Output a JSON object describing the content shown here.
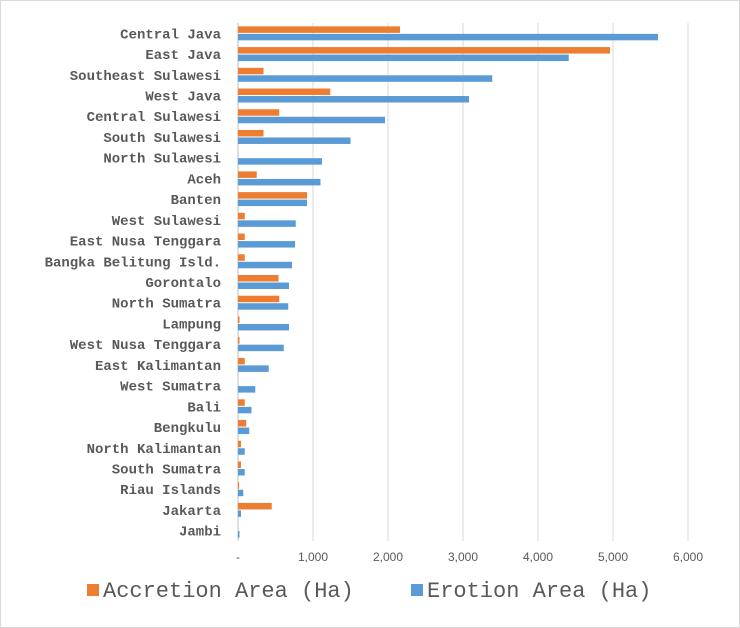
{
  "chart_data": {
    "type": "bar",
    "orientation": "horizontal",
    "categories": [
      "Central Java",
      "East Java",
      "Southeast Sulawesi",
      "West Java",
      "Central Sulawesi",
      "South Sulawesi",
      "North Sulawesi",
      "Aceh",
      "Banten",
      "West Sulawesi",
      "East Nusa Tenggara",
      "Bangka Belitung Isld.",
      "Gorontalo",
      "North Sumatra",
      "Lampung",
      "West Nusa Tenggara",
      "East Kalimantan",
      "West Sumatra",
      "Bali",
      "Bengkulu",
      "North Kalimantan",
      "South Sumatra",
      "Riau Islands",
      "Jakarta",
      "Jambi"
    ],
    "series": [
      {
        "name": "Accretion Area (Ha)",
        "color": "#ed7d31",
        "values": [
          2160,
          4960,
          340,
          1230,
          550,
          340,
          0,
          250,
          920,
          90,
          90,
          90,
          540,
          550,
          20,
          20,
          90,
          0,
          90,
          110,
          40,
          40,
          15,
          450,
          0
        ]
      },
      {
        "name": "Erotion Area (Ha)",
        "color": "#5b9bd5",
        "values": [
          5600,
          4410,
          3390,
          3080,
          1960,
          1500,
          1120,
          1100,
          920,
          770,
          760,
          720,
          680,
          670,
          680,
          610,
          410,
          230,
          180,
          150,
          90,
          90,
          70,
          40,
          20
        ]
      }
    ],
    "x_ticks": [
      "-",
      "1,000",
      "2,000",
      "3,000",
      "4,000",
      "5,000",
      "6,000"
    ],
    "xlim": [
      0,
      6000
    ],
    "grid": true,
    "legend_position": "bottom",
    "title": "",
    "xlabel": "",
    "ylabel": ""
  },
  "colors": {
    "gridline": "#d9d9d9",
    "axis": "#bfbfbf",
    "text": "#595959"
  }
}
